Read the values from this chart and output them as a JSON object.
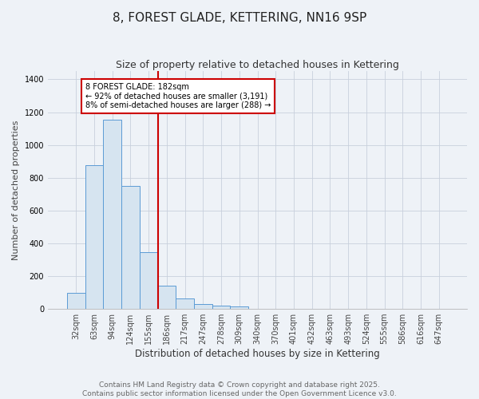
{
  "title": "8, FOREST GLADE, KETTERING, NN16 9SP",
  "subtitle": "Size of property relative to detached houses in Kettering",
  "xlabel": "Distribution of detached houses by size in Kettering",
  "ylabel": "Number of detached properties",
  "categories": [
    "32sqm",
    "63sqm",
    "94sqm",
    "124sqm",
    "155sqm",
    "186sqm",
    "217sqm",
    "247sqm",
    "278sqm",
    "309sqm",
    "340sqm",
    "370sqm",
    "401sqm",
    "432sqm",
    "463sqm",
    "493sqm",
    "524sqm",
    "555sqm",
    "586sqm",
    "616sqm",
    "647sqm"
  ],
  "values": [
    100,
    875,
    1155,
    750,
    345,
    140,
    65,
    30,
    20,
    15,
    0,
    0,
    0,
    0,
    0,
    0,
    0,
    0,
    0,
    0,
    0
  ],
  "bar_color": "#d6e4f0",
  "bar_edge_color": "#5b9bd5",
  "annotation_line1": "8 FOREST GLADE: 182sqm",
  "annotation_line2": "← 92% of detached houses are smaller (3,191)",
  "annotation_line3": "8% of semi-detached houses are larger (288) →",
  "annotation_box_color": "#ffffff",
  "annotation_box_edge": "#cc0000",
  "vline_color": "#cc0000",
  "vline_x": 4.5,
  "ylim": [
    0,
    1450
  ],
  "footer_line1": "Contains HM Land Registry data © Crown copyright and database right 2025.",
  "footer_line2": "Contains public sector information licensed under the Open Government Licence v3.0.",
  "bg_color": "#eef2f7",
  "plot_bg_color": "#eef2f7",
  "grid_color": "#c8d0dc",
  "title_fontsize": 11,
  "subtitle_fontsize": 9,
  "axis_label_fontsize": 8,
  "tick_fontsize": 7,
  "annotation_fontsize": 7,
  "footer_fontsize": 6.5
}
